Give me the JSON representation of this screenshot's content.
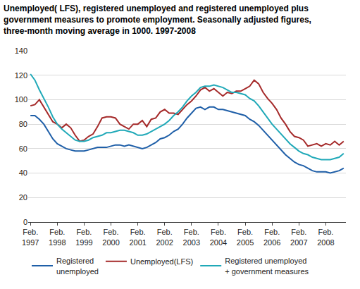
{
  "chart_data": {
    "type": "line",
    "title": "Unemployed( LFS), registered unemployed and registered unemployed plus\ngovernment measures to promote employment. Seasonally adjusted figures,\nthree-month moving average in 1000. 1997-2008",
    "categories": [
      "Feb.\n1997",
      null,
      null,
      null,
      null,
      null,
      "Feb.\n1998",
      null,
      null,
      null,
      null,
      null,
      "Feb.\n1999",
      null,
      null,
      null,
      null,
      null,
      "Feb.\n2000",
      null,
      null,
      null,
      null,
      null,
      "Feb.\n2001",
      null,
      null,
      null,
      null,
      null,
      "Feb.\n2002",
      null,
      null,
      null,
      null,
      null,
      "Feb.\n2003",
      null,
      null,
      null,
      null,
      null,
      "Feb.\n2004",
      null,
      null,
      null,
      null,
      null,
      "Feb.\n2005",
      null,
      null,
      null,
      null,
      null,
      "Feb.\n2006",
      null,
      null,
      null,
      null,
      null,
      "Feb.\n2007",
      null,
      null,
      null,
      null,
      null,
      "Feb.\n2008",
      null,
      null,
      null,
      null
    ],
    "series": [
      {
        "name": "Registered\nunemployed",
        "color": "#1f5fa8",
        "values": [
          87,
          87,
          84,
          80,
          74,
          68,
          64,
          62,
          60,
          59,
          58,
          58,
          58,
          59,
          60,
          61,
          61,
          61,
          62,
          63,
          63,
          62,
          63,
          62,
          61,
          60,
          61,
          63,
          65,
          68,
          69,
          71,
          74,
          76,
          80,
          85,
          89,
          93,
          94,
          92,
          94,
          94,
          92,
          92,
          91,
          90,
          89,
          88,
          87,
          84,
          82,
          79,
          75,
          71,
          67,
          63,
          59,
          55,
          52,
          49,
          47,
          46,
          44,
          42,
          41,
          41,
          41,
          40,
          41,
          42,
          44
        ]
      },
      {
        "name": "Unemployed(LFS)",
        "color": "#a52a2a",
        "values": [
          95,
          96,
          100,
          94,
          88,
          82,
          80,
          77,
          80,
          77,
          71,
          66,
          67,
          70,
          72,
          78,
          85,
          86,
          86,
          85,
          80,
          78,
          76,
          80,
          80,
          83,
          78,
          84,
          85,
          90,
          92,
          89,
          89,
          88,
          92,
          96,
          99,
          103,
          108,
          110,
          107,
          109,
          106,
          103,
          106,
          105,
          107,
          107,
          109,
          111,
          116,
          113,
          106,
          101,
          97,
          92,
          85,
          80,
          74,
          70,
          69,
          67,
          62,
          63,
          64,
          62,
          64,
          63,
          66,
          63,
          66
        ]
      },
      {
        "name": "Registered unemployed\n+ government measures",
        "color": "#20a9b8",
        "values": [
          121,
          116,
          108,
          101,
          94,
          86,
          80,
          76,
          73,
          70,
          67,
          66,
          66,
          67,
          69,
          70,
          71,
          73,
          73,
          74,
          75,
          75,
          74,
          73,
          71,
          71,
          72,
          74,
          76,
          78,
          80,
          83,
          87,
          90,
          94,
          99,
          103,
          106,
          110,
          111,
          111,
          112,
          111,
          110,
          108,
          106,
          106,
          105,
          104,
          101,
          99,
          95,
          90,
          85,
          80,
          76,
          72,
          68,
          64,
          61,
          58,
          56,
          55,
          53,
          52,
          51,
          51,
          51,
          52,
          53,
          56
        ]
      }
    ],
    "ylim": [
      0,
      140
    ],
    "yticks": [
      0,
      20,
      40,
      60,
      80,
      100,
      120,
      140
    ],
    "grid": true,
    "legend": "bottom"
  }
}
